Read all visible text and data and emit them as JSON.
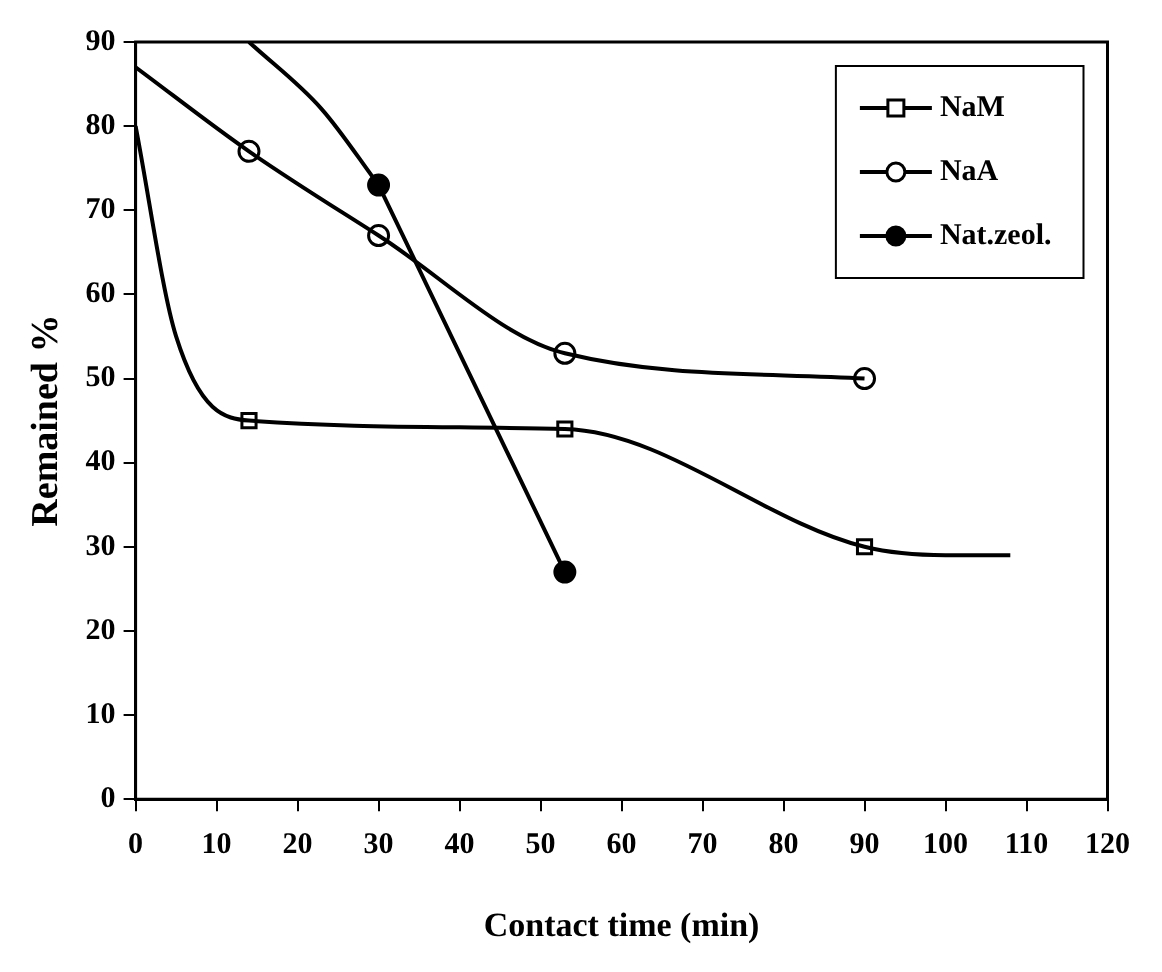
{
  "chart_data": {
    "type": "line",
    "xlabel": "Contact time (min)",
    "ylabel": "Remained %",
    "xlim": [
      0,
      120
    ],
    "xticks": [
      0,
      10,
      20,
      30,
      40,
      50,
      60,
      70,
      80,
      90,
      100,
      110,
      120
    ],
    "ylim": [
      0,
      90
    ],
    "yticks": [
      0,
      10,
      20,
      30,
      40,
      50,
      60,
      70,
      80,
      90
    ],
    "legend": "top right",
    "line_style": "solid",
    "series": [
      {
        "marker": "none",
        "color": "#000000",
        "x": [
          0,
          5,
          14,
          53,
          90,
          100,
          108
        ],
        "values": [
          80,
          55,
          45,
          44,
          30,
          29,
          29
        ]
      },
      {
        "marker": "none",
        "color": "#000000",
        "x": [
          0,
          14,
          30,
          53,
          90
        ],
        "values": [
          87,
          77,
          67,
          53,
          50
        ]
      },
      {
        "marker": "none",
        "color": "#000000",
        "x": [
          14,
          23,
          30
        ],
        "values": [
          90,
          82,
          73
        ]
      },
      {
        "marker": "none",
        "color": "#000000",
        "x": [
          30,
          53
        ],
        "values": [
          73,
          27
        ]
      },
      {
        "type": "scatter",
        "name": "NaM",
        "marker": "square",
        "color": "#ffffff",
        "x": [
          14,
          53,
          90
        ],
        "values": [
          45,
          44,
          30
        ]
      },
      {
        "type": "scatter",
        "name": "NaA",
        "marker": "circle",
        "color": "#ffffff",
        "x": [
          14,
          30,
          53,
          90
        ],
        "values": [
          77,
          67,
          53,
          50
        ]
      },
      {
        "type": "scatter",
        "name": "Nat.zeol.",
        "marker": "circle",
        "color": "#000000",
        "x": [
          30,
          53
        ],
        "values": [
          73,
          27
        ]
      }
    ]
  }
}
